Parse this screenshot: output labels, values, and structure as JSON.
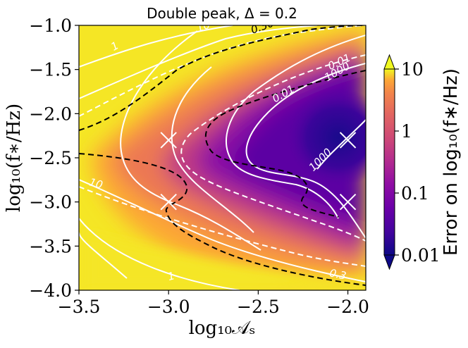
{
  "chart_data": {
    "type": "heatmap",
    "title": "Double peak, Δ = 0.2",
    "xlabel": "log₁₀𝒜ₛ",
    "ylabel": "log₁₀(f∗/Hz)",
    "xlim": [
      -3.5,
      -1.9
    ],
    "ylim": [
      -4.0,
      -1.0
    ],
    "x_ticks": [
      -3.5,
      -3.0,
      -2.5,
      -2.0
    ],
    "x_tick_labels": [
      "−3.5",
      "−3.0",
      "−2.5",
      "−2.0"
    ],
    "y_ticks": [
      -4.0,
      -3.5,
      -3.0,
      -2.5,
      -2.0,
      -1.5,
      -1.0
    ],
    "y_tick_labels": [
      "−4.0",
      "−3.5",
      "−3.0",
      "−2.5",
      "−2.0",
      "−1.5",
      "−1.0"
    ],
    "colorbar": {
      "label": "Error on log₁₀(f∗/Hz)",
      "scale": "log",
      "range": [
        0.01,
        10
      ],
      "tick_values": [
        0.01,
        0.1,
        1,
        10
      ],
      "tick_labels": [
        "0.01",
        "0.1",
        "1",
        "10"
      ],
      "colormap": "plasma"
    },
    "markers": [
      {
        "x": -3.0,
        "y": -2.3
      },
      {
        "x": -3.0,
        "y": -3.0
      },
      {
        "x": -2.0,
        "y": -2.3
      },
      {
        "x": -2.0,
        "y": -3.0
      }
    ],
    "contour_labels": [
      {
        "text": "1",
        "x": -3.29,
        "y": -1.27,
        "color": "#ffffff"
      },
      {
        "text": "10",
        "x": -2.8,
        "y": -1.05,
        "color": "#ffffff"
      },
      {
        "text": "0.30",
        "x": -2.47,
        "y": -1.05,
        "color": "#000000"
      },
      {
        "text": "0.01",
        "x": -2.04,
        "y": -1.45,
        "color": "#ffffff"
      },
      {
        "text": "1000",
        "x": -2.05,
        "y": -1.56,
        "color": "#ffffff"
      },
      {
        "text": "0.01",
        "x": -2.35,
        "y": -1.81,
        "color": "#ffffff"
      },
      {
        "text": "1000",
        "x": -2.14,
        "y": -2.55,
        "color": "#ffffff"
      },
      {
        "text": "10",
        "x": -3.41,
        "y": -2.83,
        "color": "#ffffff"
      },
      {
        "text": "1",
        "x": -2.98,
        "y": -3.88,
        "color": "#ffffff"
      },
      {
        "text": "0.3",
        "x": -2.06,
        "y": -3.86,
        "color": "#ffffff"
      }
    ]
  }
}
